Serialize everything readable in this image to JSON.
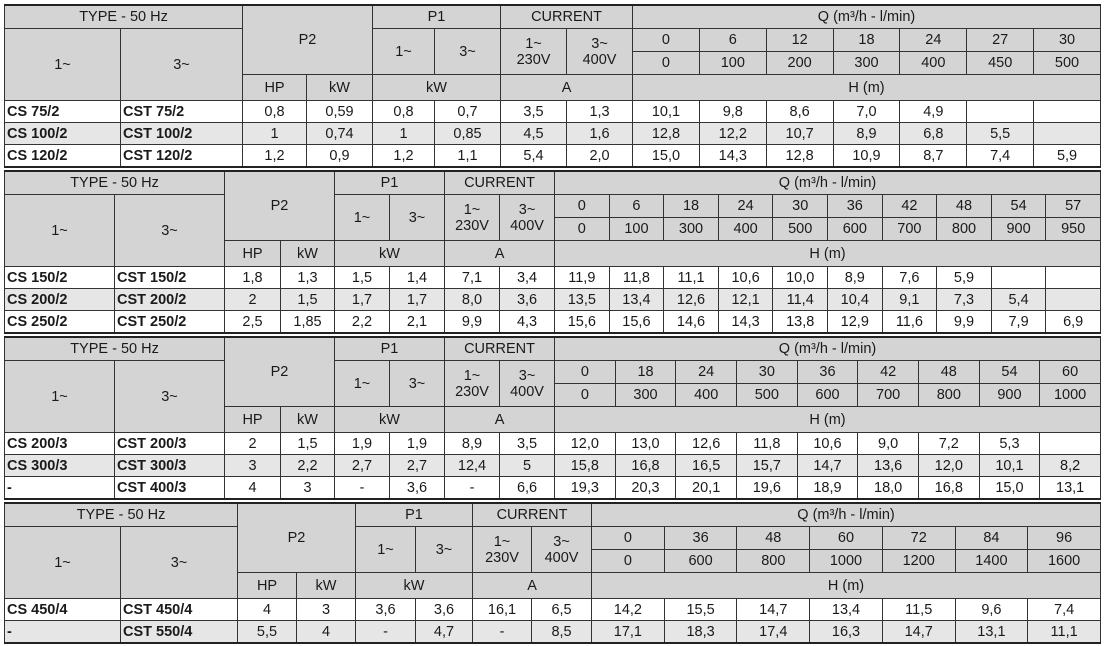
{
  "tables": [
    {
      "type_label": "TYPE - 50 Hz",
      "col_1ph": "1~",
      "col_3ph": "3~",
      "p2_label": "P2",
      "p1_label": "P1",
      "current_label": "CURRENT",
      "p1_1ph": "1~",
      "p1_3ph": "3~",
      "cur_1ph": "1~",
      "cur_1ph_v": "230V",
      "cur_3ph": "3~",
      "cur_3ph_v": "400V",
      "q_label": "Q (m³/h - l/min)",
      "hp_label": "HP",
      "kw_label": "kW",
      "p1_kw_label": "kW",
      "a_label": "A",
      "h_label": "H (m)",
      "q_m3h": [
        "0",
        "6",
        "12",
        "18",
        "24",
        "27",
        "30"
      ],
      "q_lmin": [
        "0",
        "100",
        "200",
        "300",
        "400",
        "450",
        "500"
      ],
      "rows": [
        {
          "m1": "CS 75/2",
          "m3": "CST 75/2",
          "hp": "0,8",
          "kw": "0,59",
          "p1a": "0,8",
          "p1b": "0,7",
          "a1": "3,5",
          "a3": "1,3",
          "h": [
            "10,1",
            "9,8",
            "8,6",
            "7,0",
            "4,9",
            "",
            ""
          ]
        },
        {
          "m1": "CS 100/2",
          "m3": "CST 100/2",
          "hp": "1",
          "kw": "0,74",
          "p1a": "1",
          "p1b": "0,85",
          "a1": "4,5",
          "a3": "1,6",
          "h": [
            "12,8",
            "12,2",
            "10,7",
            "8,9",
            "6,8",
            "5,5",
            ""
          ]
        },
        {
          "m1": "CS 120/2",
          "m3": "CST 120/2",
          "hp": "1,2",
          "kw": "0,9",
          "p1a": "1,2",
          "p1b": "1,1",
          "a1": "5,4",
          "a3": "2,0",
          "h": [
            "15,0",
            "14,3",
            "12,8",
            "10,9",
            "8,7",
            "7,4",
            "5,9"
          ]
        }
      ]
    },
    {
      "type_label": "TYPE - 50 Hz",
      "col_1ph": "1~",
      "col_3ph": "3~",
      "p2_label": "P2",
      "p1_label": "P1",
      "current_label": "CURRENT",
      "p1_1ph": "1~",
      "p1_3ph": "3~",
      "cur_1ph": "1~",
      "cur_1ph_v": "230V",
      "cur_3ph": "3~",
      "cur_3ph_v": "400V",
      "q_label": "Q (m³/h - l/min)",
      "hp_label": "HP",
      "kw_label": "kW",
      "p1_kw_label": "kW",
      "a_label": "A",
      "h_label": "H (m)",
      "q_m3h": [
        "0",
        "6",
        "18",
        "24",
        "30",
        "36",
        "42",
        "48",
        "54",
        "57"
      ],
      "q_lmin": [
        "0",
        "100",
        "300",
        "400",
        "500",
        "600",
        "700",
        "800",
        "900",
        "950"
      ],
      "rows": [
        {
          "m1": "CS 150/2",
          "m3": "CST 150/2",
          "hp": "1,8",
          "kw": "1,3",
          "p1a": "1,5",
          "p1b": "1,4",
          "a1": "7,1",
          "a3": "3,4",
          "h": [
            "11,9",
            "11,8",
            "11,1",
            "10,6",
            "10,0",
            "8,9",
            "7,6",
            "5,9",
            "",
            ""
          ]
        },
        {
          "m1": "CS 200/2",
          "m3": "CST 200/2",
          "hp": "2",
          "kw": "1,5",
          "p1a": "1,7",
          "p1b": "1,7",
          "a1": "8,0",
          "a3": "3,6",
          "h": [
            "13,5",
            "13,4",
            "12,6",
            "12,1",
            "11,4",
            "10,4",
            "9,1",
            "7,3",
            "5,4",
            ""
          ]
        },
        {
          "m1": "CS 250/2",
          "m3": "CST 250/2",
          "hp": "2,5",
          "kw": "1,85",
          "p1a": "2,2",
          "p1b": "2,1",
          "a1": "9,9",
          "a3": "4,3",
          "h": [
            "15,6",
            "15,6",
            "14,6",
            "14,3",
            "13,8",
            "12,9",
            "11,6",
            "9,9",
            "7,9",
            "6,9"
          ]
        }
      ]
    },
    {
      "type_label": "TYPE - 50 Hz",
      "col_1ph": "1~",
      "col_3ph": "3~",
      "p2_label": "P2",
      "p1_label": "P1",
      "current_label": "CURRENT",
      "p1_1ph": "1~",
      "p1_3ph": "3~",
      "cur_1ph": "1~",
      "cur_1ph_v": "230V",
      "cur_3ph": "3~",
      "cur_3ph_v": "400V",
      "q_label": "Q (m³/h - l/min)",
      "hp_label": "HP",
      "kw_label": "kW",
      "p1_kw_label": "kW",
      "a_label": "A",
      "h_label": "H (m)",
      "q_m3h": [
        "0",
        "18",
        "24",
        "30",
        "36",
        "42",
        "48",
        "54",
        "60"
      ],
      "q_lmin": [
        "0",
        "300",
        "400",
        "500",
        "600",
        "700",
        "800",
        "900",
        "1000"
      ],
      "rows": [
        {
          "m1": "CS 200/3",
          "m3": "CST 200/3",
          "hp": "2",
          "kw": "1,5",
          "p1a": "1,9",
          "p1b": "1,9",
          "a1": "8,9",
          "a3": "3,5",
          "h": [
            "12,0",
            "13,0",
            "12,6",
            "11,8",
            "10,6",
            "9,0",
            "7,2",
            "5,3",
            ""
          ]
        },
        {
          "m1": "CS 300/3",
          "m3": "CST 300/3",
          "hp": "3",
          "kw": "2,2",
          "p1a": "2,7",
          "p1b": "2,7",
          "a1": "12,4",
          "a3": "5",
          "h": [
            "15,8",
            "16,8",
            "16,5",
            "15,7",
            "14,7",
            "13,6",
            "12,0",
            "10,1",
            "8,2"
          ]
        },
        {
          "m1": "-",
          "m3": "CST 400/3",
          "hp": "4",
          "kw": "3",
          "p1a": "-",
          "p1b": "3,6",
          "a1": "-",
          "a3": "6,6",
          "h": [
            "19,3",
            "20,3",
            "20,1",
            "19,6",
            "18,9",
            "18,0",
            "16,8",
            "15,0",
            "13,1"
          ]
        }
      ]
    },
    {
      "type_label": "TYPE - 50 Hz",
      "col_1ph": "1~",
      "col_3ph": "3~",
      "p2_label": "P2",
      "p1_label": "P1",
      "current_label": "CURRENT",
      "p1_1ph": "1~",
      "p1_3ph": "3~",
      "cur_1ph": "1~",
      "cur_1ph_v": "230V",
      "cur_3ph": "3~",
      "cur_3ph_v": "400V",
      "q_label": "Q (m³/h - l/min)",
      "hp_label": "HP",
      "kw_label": "kW",
      "p1_kw_label": "kW",
      "a_label": "A",
      "h_label": "H (m)",
      "q_m3h": [
        "0",
        "36",
        "48",
        "60",
        "72",
        "84",
        "96"
      ],
      "q_lmin": [
        "0",
        "600",
        "800",
        "1000",
        "1200",
        "1400",
        "1600"
      ],
      "rows": [
        {
          "m1": "CS 450/4",
          "m3": "CST 450/4",
          "hp": "4",
          "kw": "3",
          "p1a": "3,6",
          "p1b": "3,6",
          "a1": "16,1",
          "a3": "6,5",
          "h": [
            "14,2",
            "15,5",
            "14,7",
            "13,4",
            "11,5",
            "9,6",
            "7,4"
          ]
        },
        {
          "m1": "-",
          "m3": "CST 550/4",
          "hp": "5,5",
          "kw": "4",
          "p1a": "-",
          "p1b": "4,7",
          "a1": "-",
          "a3": "8,5",
          "h": [
            "17,1",
            "18,3",
            "17,4",
            "16,3",
            "14,7",
            "13,1",
            "11,1"
          ]
        }
      ]
    }
  ],
  "colors": {
    "header_bg": "#d4d4d4",
    "alt_row_bg": "#e6e6e6",
    "border": "#333333"
  }
}
